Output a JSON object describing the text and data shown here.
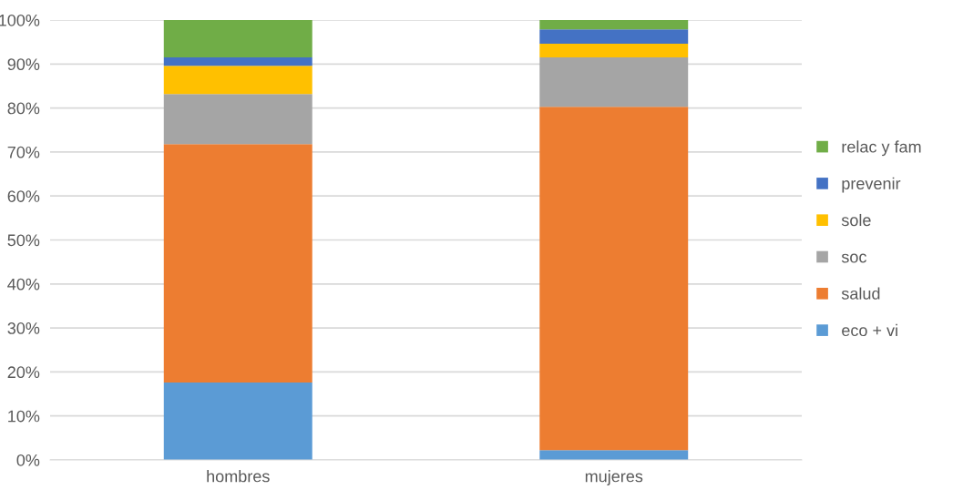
{
  "chart_data": {
    "type": "bar",
    "stacked": true,
    "categories": [
      "hombres",
      "mujeres"
    ],
    "series": [
      {
        "name": "eco + vi",
        "color": "#5b9bd5",
        "values": [
          17.6,
          2.2
        ]
      },
      {
        "name": "salud",
        "color": "#ed7d31",
        "values": [
          54.2,
          78.1
        ]
      },
      {
        "name": "soc",
        "color": "#a5a5a5",
        "values": [
          11.4,
          11.2
        ]
      },
      {
        "name": "sole",
        "color": "#ffc000",
        "values": [
          6.4,
          3.1
        ]
      },
      {
        "name": "prevenir",
        "color": "#4472c4",
        "values": [
          1.9,
          3.3
        ]
      },
      {
        "name": "relac y fam",
        "color": "#70ad47",
        "values": [
          8.5,
          2.1
        ]
      }
    ],
    "ylim": [
      0,
      100
    ],
    "yticks": [
      {
        "value": 0,
        "label": "0%"
      },
      {
        "value": 10,
        "label": "10%"
      },
      {
        "value": 20,
        "label": "20%"
      },
      {
        "value": 30,
        "label": "30%"
      },
      {
        "value": 40,
        "label": "40%"
      },
      {
        "value": 50,
        "label": "50%"
      },
      {
        "value": 60,
        "label": "60%"
      },
      {
        "value": 70,
        "label": "70%"
      },
      {
        "value": 80,
        "label": "80%"
      },
      {
        "value": 90,
        "label": "90%"
      },
      {
        "value": 100,
        "label": "100%"
      }
    ],
    "grid": "y",
    "legend": "right"
  }
}
